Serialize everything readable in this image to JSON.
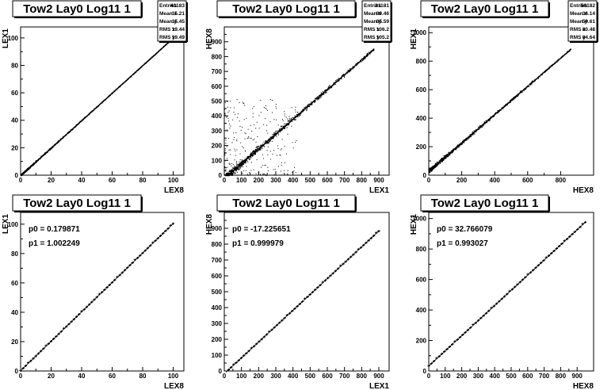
{
  "chart_data": [
    {
      "type": "scatter",
      "title": "Tow2 Lay0 Log11 1",
      "xlabel": "LEX8",
      "ylabel": "LEX1",
      "xlim": [
        0,
        107
      ],
      "ylim": [
        0,
        108
      ],
      "xticks": [
        0,
        20,
        40,
        60,
        80,
        100
      ],
      "yticks": [
        0,
        20,
        40,
        60,
        80,
        100
      ],
      "stats": [
        [
          "Entries",
          "43183"
        ],
        [
          "Mean x",
          "15.21"
        ],
        [
          "Mean y",
          "15.45"
        ],
        [
          "RMS x",
          "19.44"
        ],
        [
          "RMS y",
          "19.49"
        ]
      ],
      "trend": {
        "slope": 1.0023,
        "intercept": 0.18,
        "x_end": 100
      },
      "spread": 0.4
    },
    {
      "type": "scatter",
      "title": "Tow2 Lay0 Log11 1",
      "xlabel": "LEX1",
      "ylabel": "HEX8",
      "xlim": [
        0,
        960
      ],
      "ylim": [
        0,
        1000
      ],
      "xticks": [
        0,
        100,
        200,
        300,
        400,
        500,
        600,
        700,
        800,
        900
      ],
      "yticks": [
        0,
        100,
        200,
        300,
        400,
        500,
        600,
        700,
        800,
        900
      ],
      "stats": [
        [
          "Entries",
          "21181"
        ],
        [
          "Mean x",
          "99.46"
        ],
        [
          "Mean y",
          "85.59"
        ],
        [
          "RMS x",
          "106.2"
        ],
        [
          "RMS y",
          "105.2"
        ]
      ],
      "trend": {
        "slope": 1.0,
        "intercept": -17.2,
        "x_end": 870
      },
      "spread": 14,
      "noise": true
    },
    {
      "type": "scatter",
      "title": "Tow2 Lay0 Log11 1",
      "xlabel": "HEX8",
      "ylabel": "HEX1",
      "xlim": [
        0,
        1000
      ],
      "ylim": [
        0,
        1040
      ],
      "xticks": [
        0,
        200,
        400,
        600,
        800
      ],
      "yticks": [
        0,
        200,
        400,
        600,
        800,
        1000
      ],
      "stats": [
        [
          "Entries",
          "50182"
        ],
        [
          "Mean x",
          "36.14"
        ],
        [
          "Mean y",
          "59.61"
        ],
        [
          "RMS x",
          "80.48"
        ],
        [
          "RMS y",
          "84.64"
        ]
      ],
      "trend": {
        "slope": 0.993,
        "intercept": 32.8,
        "x_end": 860
      },
      "spread": 8
    },
    {
      "type": "line",
      "title": "Tow2 Lay0 Log11 1",
      "xlabel": "LEX8",
      "ylabel": "LEX1",
      "xlim": [
        0,
        107
      ],
      "ylim": [
        0,
        108
      ],
      "xticks": [
        0,
        20,
        40,
        60,
        80,
        100
      ],
      "yticks": [
        0,
        20,
        40,
        60,
        80,
        100
      ],
      "fit": [
        [
          "p0",
          "0.179871"
        ],
        [
          "p1",
          "1.002249"
        ]
      ],
      "p0": 0.179871,
      "p1": 1.002249,
      "fit_range": [
        0,
        100
      ]
    },
    {
      "type": "line",
      "title": "Tow2 Lay0 Log11 1",
      "xlabel": "LEX1",
      "ylabel": "HEX8",
      "xlim": [
        0,
        960
      ],
      "ylim": [
        0,
        1000
      ],
      "xticks": [
        0,
        100,
        200,
        300,
        400,
        500,
        600,
        700,
        800,
        900
      ],
      "yticks": [
        0,
        100,
        200,
        300,
        400,
        500,
        600,
        700,
        800,
        900
      ],
      "fit": [
        [
          "p0",
          "-17.225651"
        ],
        [
          "p1",
          "0.999979"
        ]
      ],
      "p0": -17.225651,
      "p1": 0.999979,
      "fit_range": [
        10,
        900
      ]
    },
    {
      "type": "line",
      "title": "Tow2 Lay0 Log11 1",
      "xlabel": "HEX8",
      "ylabel": "HEX1",
      "xlim": [
        0,
        1000
      ],
      "ylim": [
        0,
        1040
      ],
      "xticks": [
        0,
        100,
        200,
        300,
        400,
        500,
        600,
        700,
        800,
        900
      ],
      "yticks": [
        0,
        200,
        400,
        600,
        800,
        1000
      ],
      "fit": [
        [
          "p0",
          "32.766079"
        ],
        [
          "p1",
          "0.993027"
        ]
      ],
      "p0": 32.766079,
      "p1": 0.993027,
      "fit_range": [
        0,
        950
      ]
    }
  ]
}
